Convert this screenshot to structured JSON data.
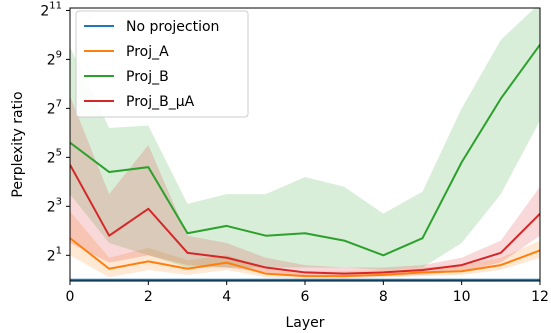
{
  "chart_data": {
    "type": "line",
    "xlabel": "Layer",
    "ylabel": "Perplexity ratio",
    "x": [
      0,
      1,
      2,
      3,
      4,
      5,
      6,
      7,
      8,
      9,
      10,
      11,
      12
    ],
    "xlim": [
      0,
      12
    ],
    "ylim_log2": [
      -0.05,
      11.1
    ],
    "y_scale": "log2",
    "x_ticks": [
      0,
      2,
      4,
      6,
      8,
      10,
      12
    ],
    "y_ticks_log2": [
      1,
      3,
      5,
      7,
      9,
      11
    ],
    "y_tick_labels": [
      {
        "base": "2",
        "exp": "1"
      },
      {
        "base": "2",
        "exp": "3"
      },
      {
        "base": "2",
        "exp": "5"
      },
      {
        "base": "2",
        "exp": "7"
      },
      {
        "base": "2",
        "exp": "9"
      },
      {
        "base": "2",
        "exp": "11"
      }
    ],
    "grid": false,
    "legend_position": "top-left",
    "series": [
      {
        "name": "No projection",
        "color": "#1f77b4",
        "log2_values": [
          0.0,
          0.0,
          0.0,
          0.0,
          0.0,
          0.0,
          0.0,
          0.0,
          0.0,
          0.0,
          0.0,
          0.0,
          0.0
        ],
        "log2_lower": [
          0.0,
          0.0,
          0.0,
          0.0,
          0.0,
          0.0,
          0.0,
          0.0,
          0.0,
          0.0,
          0.0,
          0.0,
          0.0
        ],
        "log2_upper": [
          0.0,
          0.0,
          0.0,
          0.0,
          0.0,
          0.0,
          0.0,
          0.0,
          0.0,
          0.0,
          0.0,
          0.0,
          0.0
        ]
      },
      {
        "name": "Proj_A",
        "color": "#ff7f0e",
        "log2_values": [
          1.7,
          0.45,
          0.75,
          0.45,
          0.7,
          0.25,
          0.15,
          0.15,
          0.2,
          0.3,
          0.35,
          0.6,
          1.2
        ],
        "log2_lower": [
          1.0,
          0.1,
          0.4,
          0.2,
          0.4,
          0.1,
          0.05,
          0.05,
          0.1,
          0.15,
          0.2,
          0.4,
          0.9
        ],
        "log2_upper": [
          2.8,
          0.9,
          1.3,
          0.8,
          1.0,
          0.5,
          0.35,
          0.35,
          0.4,
          0.5,
          0.6,
          0.9,
          1.6
        ]
      },
      {
        "name": "Proj_B",
        "color": "#2ca02c",
        "log2_values": [
          5.6,
          4.4,
          4.6,
          1.9,
          2.2,
          1.8,
          1.9,
          1.6,
          1.0,
          1.7,
          4.8,
          7.4,
          9.6
        ],
        "log2_lower": [
          3.5,
          1.5,
          1.0,
          0.5,
          0.5,
          0.5,
          0.5,
          0.5,
          0.4,
          0.5,
          1.5,
          3.5,
          6.5
        ],
        "log2_upper": [
          9.5,
          6.2,
          6.3,
          3.1,
          3.5,
          3.5,
          4.2,
          3.8,
          2.7,
          3.6,
          7.0,
          9.8,
          11.3
        ]
      },
      {
        "name": "Proj_B_μA",
        "color": "#d62728",
        "log2_values": [
          4.7,
          1.8,
          2.9,
          1.1,
          0.9,
          0.5,
          0.3,
          0.25,
          0.3,
          0.4,
          0.6,
          1.1,
          2.7
        ],
        "log2_lower": [
          1.5,
          0.7,
          1.0,
          0.6,
          0.5,
          0.3,
          0.15,
          0.1,
          0.15,
          0.2,
          0.35,
          0.7,
          1.8
        ],
        "log2_upper": [
          7.5,
          3.5,
          5.5,
          1.8,
          1.5,
          0.9,
          0.6,
          0.5,
          0.5,
          0.6,
          0.9,
          1.6,
          3.8
        ]
      }
    ]
  }
}
